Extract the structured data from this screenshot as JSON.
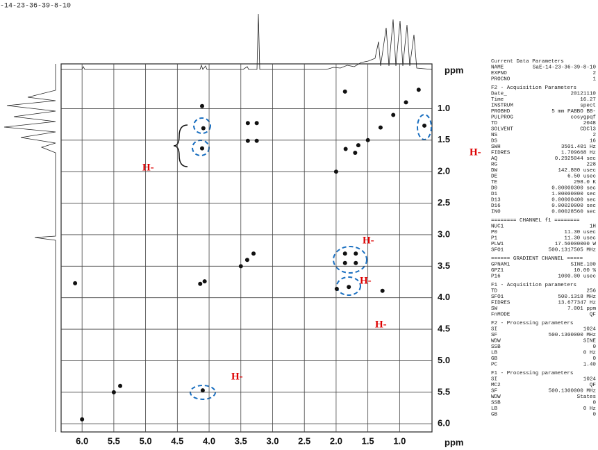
{
  "file_name": "-14-23-36-39-8-10",
  "chart_data": {
    "type": "scatter",
    "xlabel": "ppm",
    "ylabel": "ppm",
    "xlim": [
      6.33,
      0.49
    ],
    "ylim": [
      0.29,
      6.13
    ],
    "xticks": [
      {
        "value": 6,
        "label": "6.0"
      },
      5.5,
      {
        "value": 5,
        "label": "5.0"
      },
      4.5,
      {
        "value": 4,
        "label": "4.0"
      },
      3.5,
      {
        "value": 3,
        "label": "3.0"
      },
      2.5,
      {
        "value": 2,
        "label": "2.0"
      },
      1.5,
      {
        "value": 1,
        "label": "1.0"
      }
    ],
    "yticks": [
      {
        "value": 1,
        "label": "1.0"
      },
      1.5,
      {
        "value": 2,
        "label": "2.0"
      },
      2.5,
      {
        "value": 3,
        "label": "3.0"
      },
      3.5,
      {
        "value": 4,
        "label": "4.0"
      },
      4.5,
      {
        "value": 5,
        "label": "5.0"
      },
      5.5,
      {
        "value": 6,
        "label": "6.0"
      }
    ],
    "grid": true,
    "color": "#111",
    "x": [
      4.11,
      4.09,
      4.11,
      3.39,
      3.25,
      3.39,
      3.25,
      0.61,
      1.86,
      1.85,
      1.65,
      1.86,
      1.69,
      1.86,
      1.69,
      1.99,
      1.8,
      1.27,
      6.11,
      4.14,
      4.07,
      4.1,
      6.0,
      0.7,
      0.9,
      1.1,
      1.3,
      1.5,
      1.7,
      2.0,
      3.3,
      3.4,
      3.5,
      5.4,
      5.5
    ],
    "y": [
      0.96,
      1.31,
      1.63,
      1.23,
      1.23,
      1.51,
      1.51,
      1.27,
      0.73,
      1.64,
      1.58,
      3.3,
      3.3,
      3.45,
      3.45,
      3.86,
      3.83,
      3.89,
      3.77,
      3.78,
      3.74,
      5.47,
      5.93,
      0.7,
      0.9,
      1.1,
      1.3,
      1.5,
      1.7,
      2.0,
      3.3,
      3.4,
      3.5,
      5.4,
      5.5
    ]
  },
  "annotations": [
    "H-",
    "H-",
    "H-",
    "H-",
    "H-",
    "H-"
  ],
  "parameters": [
    {
      "heading": "Current Data Parameters",
      "rows": [
        [
          "NAME",
          "SaE-14-23-36-39-8-10"
        ],
        [
          "EXPNO",
          "2"
        ],
        [
          "PROCNO",
          "1"
        ]
      ]
    },
    {
      "heading": "F2 - Acquisition Parameters",
      "rows": [
        [
          "Date_",
          "20121110"
        ],
        [
          "Time",
          "16.27"
        ],
        [
          "INSTRUM",
          "spect"
        ],
        [
          "PROBHD",
          "5 mm PABBO BB-"
        ],
        [
          "PULPROG",
          "cosygpqf"
        ],
        [
          "TD",
          "2048"
        ],
        [
          "SOLVENT",
          "CDCl3"
        ],
        [
          "NS",
          "2"
        ],
        [
          "DS",
          "16"
        ],
        [
          "SWH",
          "3501.401 Hz"
        ],
        [
          "FIDRES",
          "1.709668 Hz"
        ],
        [
          "AQ",
          "0.2925044 sec"
        ],
        [
          "RG",
          "228"
        ],
        [
          "DW",
          "142.800 usec"
        ],
        [
          "DE",
          "6.50 usec"
        ],
        [
          "TE",
          "298.0 K"
        ],
        [
          "D0",
          "0.00000300 sec"
        ],
        [
          "D1",
          "1.00000000 sec"
        ],
        [
          "D13",
          "0.00000400 sec"
        ],
        [
          "D16",
          "0.00020000 sec"
        ],
        [
          "IN0",
          "0.00028560 sec"
        ]
      ]
    },
    {
      "heading": "======== CHANNEL f1 ========",
      "rows": [
        [
          "NUC1",
          "1H"
        ],
        [
          "P0",
          "11.30 usec"
        ],
        [
          "P1",
          "11.30 usec"
        ],
        [
          "PLW1",
          "17.50000000 W"
        ],
        [
          "SFO1",
          "500.1317505 MHz"
        ]
      ]
    },
    {
      "heading": "====== GRADIENT CHANNEL =====",
      "rows": [
        [
          "GPNAM1",
          "SINE.100"
        ],
        [
          "GPZ1",
          "10.00 %"
        ],
        [
          "P16",
          "1000.00 usec"
        ]
      ]
    },
    {
      "heading": "F1 - Acquisition parameters",
      "rows": [
        [
          "TD",
          "256"
        ],
        [
          "SFO1",
          "500.1318 MHz"
        ],
        [
          "FIDRES",
          "13.677347 Hz"
        ],
        [
          "SW",
          "7.001 ppm"
        ],
        [
          "FnMODE",
          "QF"
        ]
      ]
    },
    {
      "heading": "F2 - Processing parameters",
      "rows": [
        [
          "SI",
          "1024"
        ],
        [
          "SF",
          "500.1300000 MHz"
        ],
        [
          "WDW",
          "SINE"
        ],
        [
          "SSB",
          "0"
        ],
        [
          "LB",
          "0 Hz"
        ],
        [
          "GB",
          "0"
        ],
        [
          "PC",
          "1.40"
        ]
      ]
    },
    {
      "heading": "F1 - Processing parameters",
      "rows": [
        [
          "SI",
          "1024"
        ],
        [
          "MC2",
          "QF"
        ],
        [
          "SF",
          "500.1300000 MHz"
        ],
        [
          "WDW",
          "States"
        ],
        [
          "SSB",
          "0"
        ],
        [
          "LB",
          "0 Hz"
        ],
        [
          "GB",
          "0"
        ]
      ]
    }
  ]
}
